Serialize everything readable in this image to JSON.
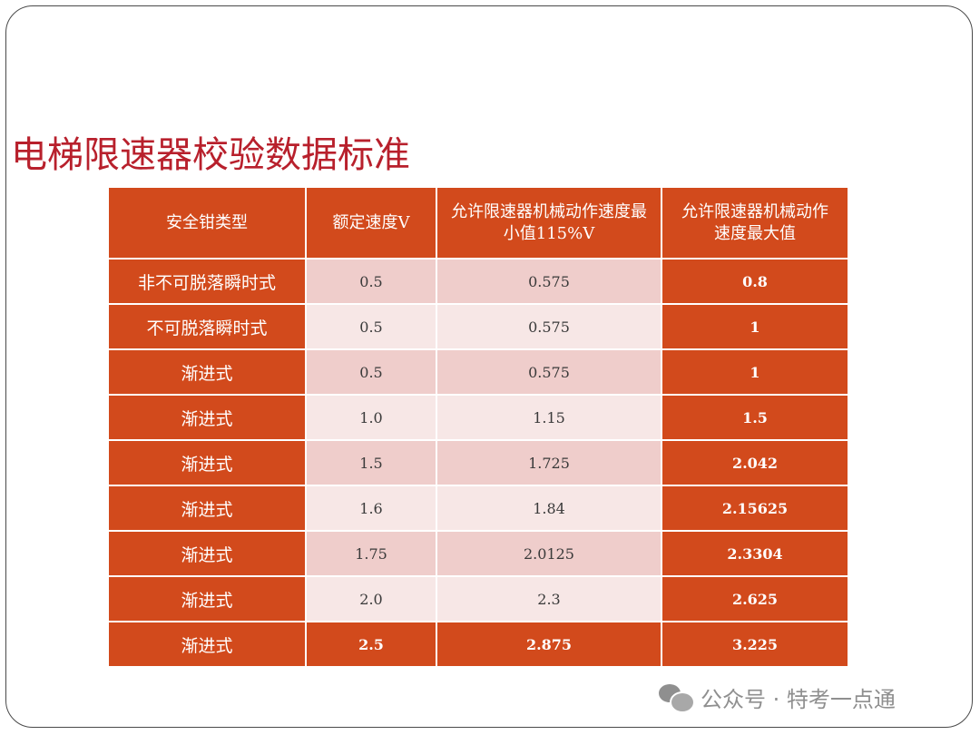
{
  "slide": {
    "title": "电梯限速器校验数据标准"
  },
  "table": {
    "headers": [
      "安全钳类型",
      "额定速度V",
      "允许限速器机械动作速度最小值115%V",
      "允许限速器机械动作速度最大值"
    ],
    "rows": [
      {
        "type": "非不可脱落瞬时式",
        "rated": "0.5",
        "min": "0.575",
        "max": "0.8"
      },
      {
        "type": "不可脱落瞬时式",
        "rated": "0.5",
        "min": "0.575",
        "max": "1"
      },
      {
        "type": "渐进式",
        "rated": "0.5",
        "min": "0.575",
        "max": "1"
      },
      {
        "type": "渐进式",
        "rated": "1.0",
        "min": "1.15",
        "max": "1.5"
      },
      {
        "type": "渐进式",
        "rated": "1.5",
        "min": "1.725",
        "max": "2.042"
      },
      {
        "type": "渐进式",
        "rated": "1.6",
        "min": "1.84",
        "max": "2.15625"
      },
      {
        "type": "渐进式",
        "rated": "1.75",
        "min": "2.0125",
        "max": "2.3304"
      },
      {
        "type": "渐进式",
        "rated": "2.0",
        "min": "2.3",
        "max": "2.625"
      },
      {
        "type": "渐进式",
        "rated": "2.5",
        "min": "2.875",
        "max": "3.225"
      }
    ]
  },
  "watermark": {
    "icon": "wechat-icon",
    "text": "公众号 · 特考一点通"
  },
  "colors": {
    "title": "#b8202c",
    "header_bg": "#d24a1c",
    "row_odd": "#efcdcb",
    "row_even": "#f7e7e6"
  }
}
